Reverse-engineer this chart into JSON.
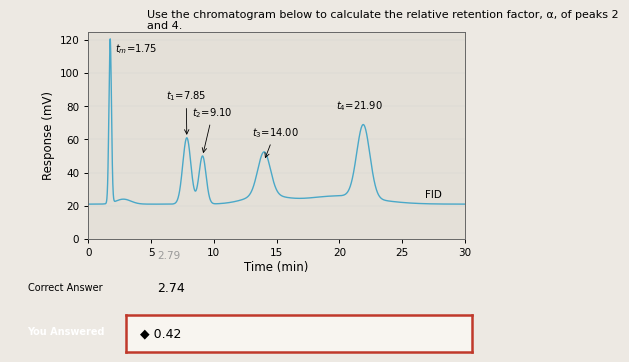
{
  "title_line1": "Use the chromatogram below to calculate the relative retention factor, α, of peaks 2",
  "title_line2": "and 4.",
  "xlabel": "Time (min)",
  "ylabel": "Response (mV)",
  "xlim": [
    0,
    30
  ],
  "ylim": [
    0,
    125
  ],
  "yticks": [
    0,
    20,
    40,
    60,
    80,
    100,
    120
  ],
  "xticks": [
    0,
    5,
    10,
    15,
    20,
    25,
    30
  ],
  "line_color": "#4aa8c8",
  "baseline": 21,
  "fid_label": "FID",
  "fid_x": 26.8,
  "fid_y": 27,
  "correct_answer_label": "Correct Answer",
  "correct_answer_value": "2.74",
  "you_answered_label": "You Answered",
  "you_answered_value": "◆ 0.42",
  "bg_color": "#ede9e3",
  "plot_bg": "#e4e0d8",
  "answer_section_text": "2.79",
  "title_fontsize": 8.0,
  "axis_label_fontsize": 8.5,
  "tick_fontsize": 7.5
}
